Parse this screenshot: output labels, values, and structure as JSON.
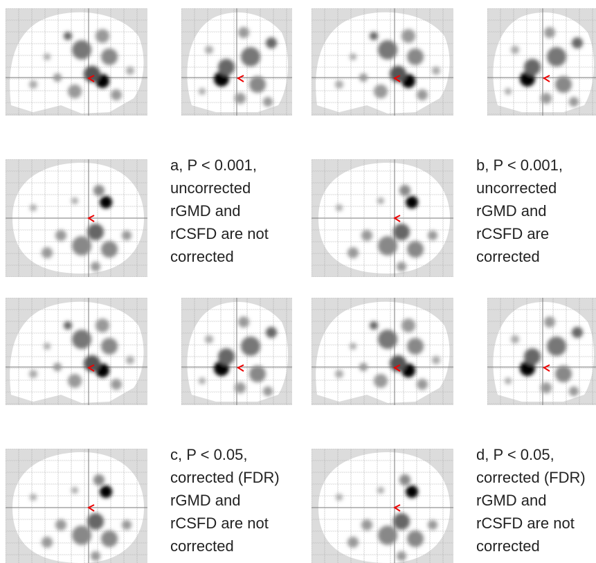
{
  "panels": [
    {
      "lines": [
        "a, P < 0.001,",
        "uncorrected",
        "rGMD and",
        "rCSFD are not",
        "corrected"
      ]
    },
    {
      "lines": [
        "b, P < 0.001,",
        "uncorrected",
        "rGMD and",
        "rCSFD are",
        "corrected"
      ]
    },
    {
      "lines": [
        "c, P < 0.05,",
        "corrected (FDR)",
        "rGMD and",
        "rCSFD are not",
        "corrected"
      ]
    },
    {
      "lines": [
        "d, P < 0.05,",
        "corrected (FDR)",
        "rGMD and",
        "rCSFD are not",
        "corrected"
      ]
    }
  ]
}
